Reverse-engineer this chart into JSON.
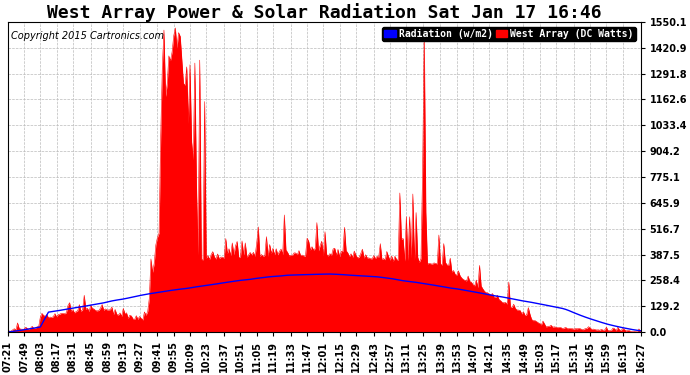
{
  "title": "West Array Power & Solar Radiation Sat Jan 17 16:46",
  "copyright": "Copyright 2015 Cartronics.com",
  "legend_radiation": "Radiation (w/m2)",
  "legend_west": "West Array (DC Watts)",
  "legend_radiation_bg": "#0000ff",
  "legend_west_bg": "#ff0000",
  "ymin": 0.0,
  "ymax": 1550.1,
  "yticks": [
    0.0,
    129.2,
    258.4,
    387.5,
    516.7,
    645.9,
    775.1,
    904.2,
    1033.4,
    1162.6,
    1291.8,
    1420.9,
    1550.1
  ],
  "ytick_labels": [
    "0.0",
    "129.2",
    "258.4",
    "387.5",
    "516.7",
    "645.9",
    "775.1",
    "904.2",
    "1033.4",
    "1162.6",
    "1291.8",
    "1420.9",
    "1550.1"
  ],
  "background_color": "#ffffff",
  "plot_bg_color": "#ffffff",
  "grid_color": "#bbbbbb",
  "red_fill_color": "#ff0000",
  "blue_line_color": "#0000ff",
  "title_fontsize": 13,
  "copyright_fontsize": 7,
  "axis_fontsize": 7,
  "time_labels": [
    "07:21",
    "07:49",
    "08:03",
    "08:17",
    "08:31",
    "08:45",
    "08:59",
    "09:13",
    "09:27",
    "09:41",
    "09:55",
    "10:09",
    "10:23",
    "10:37",
    "10:51",
    "11:05",
    "11:19",
    "11:33",
    "11:47",
    "12:01",
    "12:15",
    "12:29",
    "12:43",
    "12:57",
    "13:11",
    "13:25",
    "13:39",
    "13:53",
    "14:07",
    "14:21",
    "14:35",
    "14:49",
    "15:03",
    "15:17",
    "15:31",
    "15:45",
    "15:59",
    "16:13",
    "16:27"
  ]
}
